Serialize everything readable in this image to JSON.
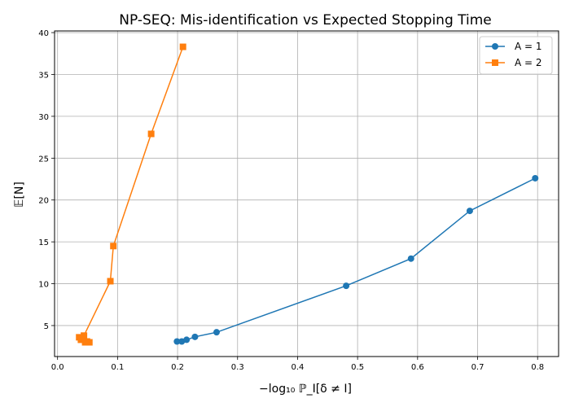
{
  "chart_data": {
    "type": "line",
    "title": "NP-SEQ: Mis-identification vs Expected Stopping Time",
    "xlabel": "−log₁₀ ℙ_I[δ ≠ I]",
    "ylabel": "𝔼[N]",
    "xlim": [
      -0.005,
      0.835
    ],
    "ylim": [
      1.3,
      40.2
    ],
    "xticks": [
      "0.0",
      "0.1",
      "0.2",
      "0.3",
      "0.4",
      "0.5",
      "0.6",
      "0.7",
      "0.8"
    ],
    "yticks": [
      "5",
      "10",
      "15",
      "20",
      "25",
      "30",
      "35",
      "40"
    ],
    "grid": true,
    "legend_position": "top-right",
    "series": [
      {
        "name": "A = 1",
        "color": "#1f77b4",
        "marker": "circle",
        "points": [
          [
            0.199,
            3.1
          ],
          [
            0.207,
            3.1
          ],
          [
            0.215,
            3.3
          ],
          [
            0.229,
            3.65
          ],
          [
            0.265,
            4.2
          ],
          [
            0.481,
            9.75
          ],
          [
            0.589,
            13.0
          ],
          [
            0.687,
            18.7
          ],
          [
            0.796,
            22.6
          ]
        ]
      },
      {
        "name": "A = 2",
        "color": "#ff7f0e",
        "marker": "square",
        "points": [
          [
            0.209,
            38.3
          ],
          [
            0.156,
            27.9
          ],
          [
            0.093,
            14.5
          ],
          [
            0.088,
            10.3
          ],
          [
            0.044,
            3.8
          ],
          [
            0.036,
            3.6
          ],
          [
            0.039,
            3.3
          ],
          [
            0.046,
            3.0
          ],
          [
            0.053,
            3.0
          ],
          [
            0.049,
            3.1
          ]
        ]
      }
    ]
  }
}
